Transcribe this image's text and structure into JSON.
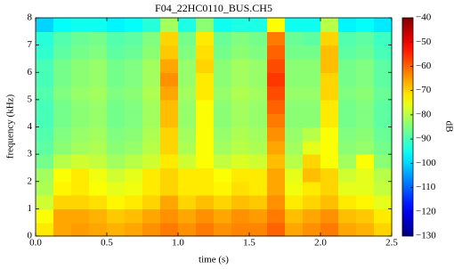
{
  "chart_data": {
    "type": "heatmap",
    "title": "F04_22HC0110_BUS.CH5",
    "xlabel": "time (s)",
    "ylabel": "frequency (kHz)",
    "colorbar_label": "dB",
    "colormap": "jet",
    "xlim": [
      0,
      2.5
    ],
    "xticks": [
      {
        "value": 0,
        "label": "0.0"
      },
      0.5,
      {
        "value": 1,
        "label": "1.0"
      },
      1.5,
      {
        "value": 2,
        "label": "2.0"
      },
      2.5
    ],
    "ylim": [
      0,
      8
    ],
    "yticks": [
      0,
      1,
      2,
      3,
      4,
      5,
      6,
      7,
      8
    ],
    "clim": [
      -130,
      -40
    ],
    "cticks": [
      {
        "value": -130,
        "label": "−130"
      },
      {
        "value": -120,
        "label": "−120"
      },
      {
        "value": -110,
        "label": "−110"
      },
      {
        "value": -100,
        "label": "−100"
      },
      {
        "value": -90,
        "label": "−90"
      },
      {
        "value": -80,
        "label": "−80"
      },
      {
        "value": -70,
        "label": "−70"
      },
      {
        "value": -60,
        "label": "−60"
      },
      {
        "value": -50,
        "label": "−50"
      },
      {
        "value": -40,
        "label": "−40"
      }
    ],
    "xbins": [
      0,
      0.125,
      0.25,
      0.375,
      0.5,
      0.625,
      0.75,
      0.875,
      1,
      1.125,
      1.25,
      1.375,
      1.5,
      1.625,
      1.75,
      1.875,
      2,
      2.125,
      2.25,
      2.375,
      2.5
    ],
    "ybins": [
      0,
      0.5,
      1,
      1.5,
      2,
      2.5,
      3,
      3.5,
      4,
      4.5,
      5,
      5.5,
      6,
      6.5,
      7,
      7.5,
      8
    ],
    "values": [
      [
        -72,
        -66,
        -65,
        -66,
        -67,
        -66,
        -64,
        -62,
        -64,
        -62,
        -64,
        -63,
        -63,
        -60,
        -66,
        -64,
        -62,
        -66,
        -67,
        -70
      ],
      [
        -74,
        -66,
        -66,
        -67,
        -69,
        -68,
        -66,
        -64,
        -66,
        -64,
        -66,
        -64,
        -65,
        -62,
        -68,
        -66,
        -64,
        -68,
        -69,
        -72
      ],
      [
        -78,
        -70,
        -70,
        -71,
        -73,
        -72,
        -70,
        -66,
        -70,
        -68,
        -70,
        -68,
        -69,
        -64,
        -72,
        -70,
        -68,
        -72,
        -73,
        -76
      ],
      [
        -81,
        -73,
        -72,
        -74,
        -76,
        -75,
        -72,
        -70,
        -72,
        -72,
        -73,
        -71,
        -72,
        -66,
        -75,
        -72,
        -70,
        -76,
        -76,
        -79
      ],
      [
        -82,
        -74,
        -72,
        -75,
        -78,
        -76,
        -72,
        -70,
        -72,
        -72,
        -74,
        -72,
        -72,
        -66,
        -76,
        -68,
        -70,
        -78,
        -76,
        -80
      ],
      [
        -86,
        -80,
        -78,
        -79,
        -82,
        -80,
        -78,
        -72,
        -78,
        -74,
        -79,
        -77,
        -78,
        -68,
        -80,
        -70,
        -74,
        -82,
        -74,
        -84
      ],
      [
        -88,
        -84,
        -82,
        -81,
        -84,
        -83,
        -80,
        -70,
        -81,
        -74,
        -82,
        -80,
        -81,
        -66,
        -82,
        -76,
        -74,
        -84,
        -83,
        -86
      ],
      [
        -89,
        -85,
        -83,
        -82,
        -85,
        -84,
        -81,
        -70,
        -82,
        -74,
        -83,
        -81,
        -82,
        -64,
        -83,
        -80,
        -74,
        -85,
        -84,
        -87
      ],
      [
        -90,
        -86,
        -84,
        -83,
        -86,
        -85,
        -82,
        -68,
        -83,
        -74,
        -84,
        -82,
        -83,
        -62,
        -84,
        -84,
        -72,
        -86,
        -85,
        -88
      ],
      [
        -90,
        -86,
        -84,
        -83,
        -86,
        -85,
        -82,
        -68,
        -83,
        -74,
        -84,
        -82,
        -83,
        -60,
        -84,
        -84,
        -72,
        -86,
        -85,
        -88
      ],
      [
        -89,
        -85,
        -83,
        -82,
        -85,
        -84,
        -81,
        -66,
        -82,
        -72,
        -83,
        -81,
        -82,
        -58,
        -83,
        -83,
        -70,
        -85,
        -84,
        -87
      ],
      [
        -90,
        -86,
        -84,
        -83,
        -86,
        -85,
        -82,
        -64,
        -83,
        -72,
        -84,
        -82,
        -83,
        -56,
        -84,
        -84,
        -70,
        -86,
        -85,
        -88
      ],
      [
        -90,
        -86,
        -84,
        -83,
        -86,
        -85,
        -82,
        -66,
        -83,
        -70,
        -84,
        -82,
        -83,
        -58,
        -84,
        -84,
        -68,
        -86,
        -85,
        -88
      ],
      [
        -92,
        -88,
        -86,
        -85,
        -88,
        -87,
        -84,
        -69,
        -85,
        -71,
        -86,
        -84,
        -85,
        -60,
        -86,
        -86,
        -68,
        -88,
        -87,
        -90
      ],
      [
        -93,
        -89,
        -87,
        -86,
        -89,
        -88,
        -85,
        -70,
        -86,
        -72,
        -87,
        -85,
        -86,
        -62,
        -87,
        -88,
        -70,
        -89,
        -88,
        -91
      ],
      [
        -100,
        -96,
        -95,
        -95,
        -97,
        -96,
        -93,
        -82,
        -94,
        -84,
        -95,
        -94,
        -94,
        -74,
        -95,
        -95,
        -80,
        -97,
        -96,
        -98
      ]
    ]
  }
}
